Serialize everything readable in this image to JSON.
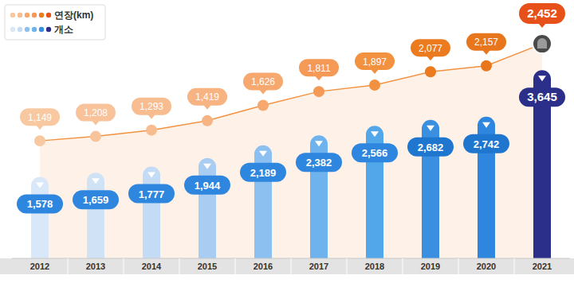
{
  "chart_data": {
    "type": "bar",
    "categories": [
      "2012",
      "2013",
      "2014",
      "2015",
      "2016",
      "2017",
      "2018",
      "2019",
      "2020",
      "2021"
    ],
    "series": [
      {
        "name": "연장(km)",
        "type": "line",
        "axis": "y2",
        "values": [
          1149,
          1208,
          1293,
          1419,
          1626,
          1811,
          1897,
          2077,
          2157,
          2452
        ],
        "value_labels": [
          "1,149",
          "1,208",
          "1,293",
          "1,419",
          "1,626",
          "1,811",
          "1,897",
          "2,077",
          "2,157",
          "2,452"
        ],
        "color": "#f29240",
        "colors": [
          "#f8c9a1",
          "#f8c39a",
          "#f7bd90",
          "#f7b482",
          "#f6a86e",
          "#f49a56",
          "#f29240",
          "#ec7a1e",
          "#e8761c",
          "#e8501a"
        ],
        "marker": "circle"
      },
      {
        "name": "개소",
        "type": "bar",
        "values": [
          1578,
          1659,
          1777,
          1944,
          2189,
          2382,
          2566,
          2682,
          2742,
          3645
        ],
        "value_labels": [
          "1,578",
          "1,659",
          "1,777",
          "1,944",
          "2,189",
          "2,382",
          "2,566",
          "2,682",
          "2,742",
          "3,645"
        ],
        "color": "#2e86de",
        "colors": [
          "#d9e8f8",
          "#cfe2f6",
          "#c3dbf5",
          "#a9cdf2",
          "#8cc0f0",
          "#6eb3ee",
          "#52a6ea",
          "#3a8fe0",
          "#2e86de",
          "#2b2f8a"
        ]
      }
    ],
    "ylim": [
      0,
      4540
    ],
    "y2lim": [
      -430,
      2720
    ],
    "data_labels": true,
    "tick_labels": "x",
    "legend": "top-left",
    "grid": false
  }
}
